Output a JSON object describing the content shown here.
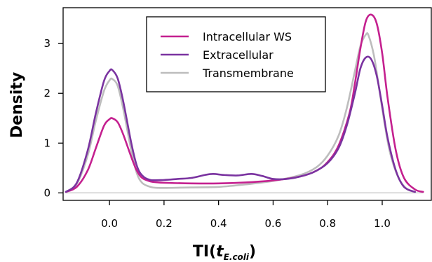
{
  "chart_data": {
    "type": "line",
    "ylabel": "Density",
    "xlabel": {
      "main": "TI(",
      "var": "t",
      "sub": "E.coli",
      "close": ")"
    },
    "xlim": [
      -0.17,
      1.18
    ],
    "ylim": [
      -0.15,
      3.72
    ],
    "xticks": [
      0.0,
      0.2,
      0.4,
      0.6,
      0.8,
      1.0
    ],
    "xtick_labels": [
      "0.0",
      "0.2",
      "0.4",
      "0.6",
      "0.8",
      "1.0"
    ],
    "yticks": [
      0,
      1,
      2,
      3
    ],
    "ytick_labels": [
      "0",
      "1",
      "2",
      "3"
    ],
    "baseline": 0,
    "baseline_color": "#c8c8c8",
    "grid": false,
    "legend_position": "top-center",
    "series": [
      {
        "name": "Intracellular WS",
        "color": "#c4208f",
        "x": [
          -0.16,
          -0.12,
          -0.08,
          -0.05,
          -0.02,
          0.0,
          0.01,
          0.03,
          0.05,
          0.08,
          0.1,
          0.12,
          0.15,
          0.18,
          0.22,
          0.3,
          0.4,
          0.5,
          0.6,
          0.7,
          0.76,
          0.8,
          0.84,
          0.88,
          0.9,
          0.92,
          0.94,
          0.96,
          0.98,
          1.0,
          1.02,
          1.05,
          1.08,
          1.12,
          1.15
        ],
        "y": [
          0.02,
          0.12,
          0.45,
          0.9,
          1.35,
          1.48,
          1.5,
          1.42,
          1.18,
          0.72,
          0.45,
          0.3,
          0.23,
          0.21,
          0.2,
          0.19,
          0.19,
          0.21,
          0.25,
          0.33,
          0.45,
          0.62,
          0.95,
          1.6,
          2.2,
          2.9,
          3.45,
          3.58,
          3.4,
          2.8,
          1.9,
          0.85,
          0.3,
          0.07,
          0.02
        ]
      },
      {
        "name": "Extracellular",
        "color": "#7a33a0",
        "x": [
          -0.16,
          -0.12,
          -0.08,
          -0.05,
          -0.02,
          0.0,
          0.01,
          0.03,
          0.05,
          0.08,
          0.1,
          0.12,
          0.15,
          0.2,
          0.25,
          0.3,
          0.35,
          0.38,
          0.42,
          0.47,
          0.52,
          0.56,
          0.6,
          0.65,
          0.7,
          0.75,
          0.8,
          0.84,
          0.87,
          0.9,
          0.92,
          0.94,
          0.96,
          0.98,
          1.0,
          1.02,
          1.05,
          1.08,
          1.12
        ],
        "y": [
          0.02,
          0.2,
          0.85,
          1.6,
          2.25,
          2.45,
          2.47,
          2.3,
          1.85,
          1.0,
          0.55,
          0.35,
          0.26,
          0.26,
          0.28,
          0.3,
          0.36,
          0.38,
          0.36,
          0.35,
          0.38,
          0.34,
          0.28,
          0.28,
          0.33,
          0.42,
          0.6,
          0.9,
          1.35,
          2.0,
          2.5,
          2.72,
          2.68,
          2.35,
          1.75,
          1.1,
          0.45,
          0.12,
          0.02
        ]
      },
      {
        "name": "Transmembrane",
        "color": "#bdbdbd",
        "x": [
          -0.16,
          -0.12,
          -0.08,
          -0.05,
          -0.02,
          0.0,
          0.01,
          0.03,
          0.05,
          0.08,
          0.1,
          0.12,
          0.15,
          0.18,
          0.22,
          0.3,
          0.4,
          0.5,
          0.6,
          0.7,
          0.76,
          0.8,
          0.84,
          0.87,
          0.9,
          0.92,
          0.94,
          0.95,
          0.97,
          0.99,
          1.01,
          1.03,
          1.06,
          1.09,
          1.12
        ],
        "y": [
          0.02,
          0.18,
          0.75,
          1.45,
          2.05,
          2.26,
          2.29,
          2.15,
          1.7,
          0.85,
          0.4,
          0.2,
          0.12,
          0.1,
          0.1,
          0.11,
          0.12,
          0.17,
          0.24,
          0.36,
          0.52,
          0.75,
          1.15,
          1.7,
          2.45,
          2.95,
          3.18,
          3.16,
          2.75,
          2.05,
          1.35,
          0.78,
          0.3,
          0.08,
          0.02
        ]
      }
    ]
  }
}
